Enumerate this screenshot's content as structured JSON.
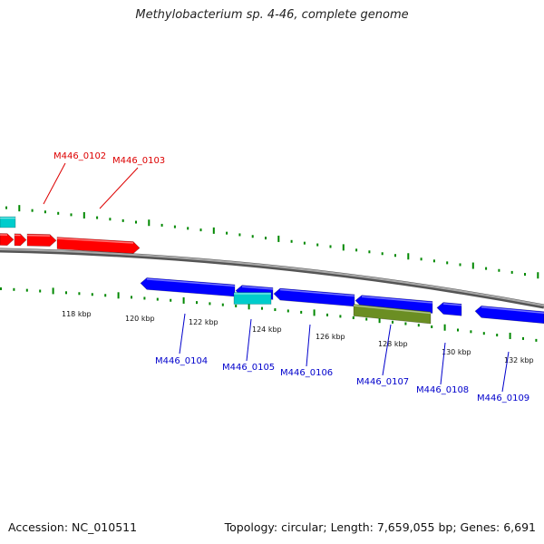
{
  "title": "Methylobacterium sp. 4-46, complete genome",
  "footer": {
    "accession_text": "Accession: NC_010511",
    "summary_text": "Topology: circular; Length: 7,659,055 bp; Genes: 6,691"
  },
  "tick_labels": [
    "118 kbp",
    "120 kbp",
    "122 kbp",
    "124 kbp",
    "126 kbp",
    "128 kbp",
    "130 kbp",
    "132 kbp"
  ],
  "genes": [
    {
      "label": "M446_0102",
      "strand": "forward",
      "color": "#dd0000"
    },
    {
      "label": "M446_0103",
      "strand": "forward",
      "color": "#dd0000"
    },
    {
      "label": "M446_0104",
      "strand": "reverse",
      "color": "#0000cc"
    },
    {
      "label": "M446_0105",
      "strand": "reverse",
      "color": "#0000cc"
    },
    {
      "label": "M446_0106",
      "strand": "reverse",
      "color": "#0000cc"
    },
    {
      "label": "M446_0107",
      "strand": "reverse",
      "color": "#0000cc"
    },
    {
      "label": "M446_0108",
      "strand": "reverse",
      "color": "#0000cc"
    },
    {
      "label": "M446_0109",
      "strand": "reverse",
      "color": "#0000cc"
    }
  ],
  "colors": {
    "forward_gene": "#ff0000",
    "reverse_gene": "#0000ff",
    "rna_feature": "#00cccc",
    "other_feature": "#6b8e23",
    "backbone": "#888888",
    "ticks": "#008800"
  }
}
